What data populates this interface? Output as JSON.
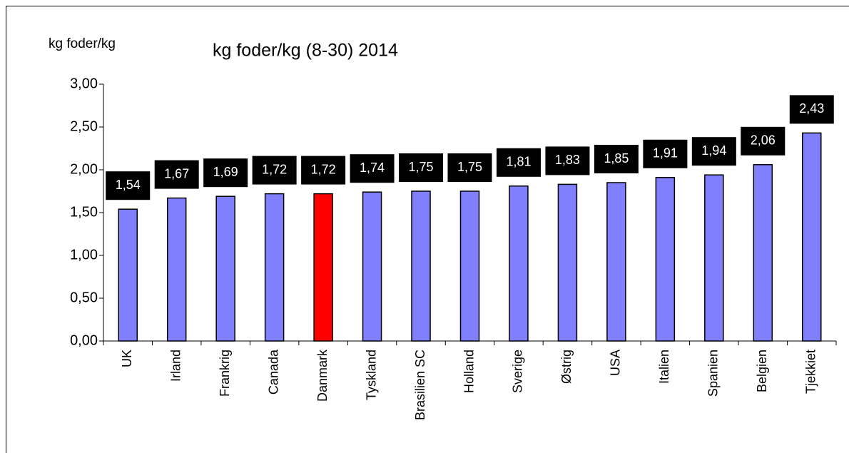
{
  "chart_data": {
    "type": "bar",
    "title": "kg foder/kg (8-30) 2014",
    "y_label": "kg foder/kg",
    "categories": [
      "UK",
      "Irland",
      "Frankrig",
      "Canada",
      "Danmark",
      "Tyskland",
      "Brasilien SC",
      "Holland",
      "Sverige",
      "Østrig",
      "USA",
      "Italien",
      "Spanien",
      "Belgien",
      "Tjekkiet"
    ],
    "values": [
      1.54,
      1.67,
      1.69,
      1.72,
      1.72,
      1.74,
      1.75,
      1.75,
      1.81,
      1.83,
      1.85,
      1.91,
      1.94,
      2.06,
      2.43
    ],
    "value_labels": [
      "1,54",
      "1,67",
      "1,69",
      "1,72",
      "1,72",
      "1,74",
      "1,75",
      "1,75",
      "1,81",
      "1,83",
      "1,85",
      "1,91",
      "1,94",
      "2,06",
      "2,43"
    ],
    "colors": [
      "#8080ff",
      "#8080ff",
      "#8080ff",
      "#8080ff",
      "#ff0000",
      "#8080ff",
      "#8080ff",
      "#8080ff",
      "#8080ff",
      "#8080ff",
      "#8080ff",
      "#8080ff",
      "#8080ff",
      "#8080ff",
      "#8080ff"
    ],
    "ylim": [
      0,
      3
    ],
    "yticks": [
      {
        "value": 0,
        "label": "0,00"
      },
      {
        "value": 0.5,
        "label": "0,50"
      },
      {
        "value": 1,
        "label": "1,00"
      },
      {
        "value": 1.5,
        "label": "1,50"
      },
      {
        "value": 2,
        "label": "2,00"
      },
      {
        "value": 2.5,
        "label": "2,50"
      },
      {
        "value": 3,
        "label": "3,00"
      }
    ]
  }
}
